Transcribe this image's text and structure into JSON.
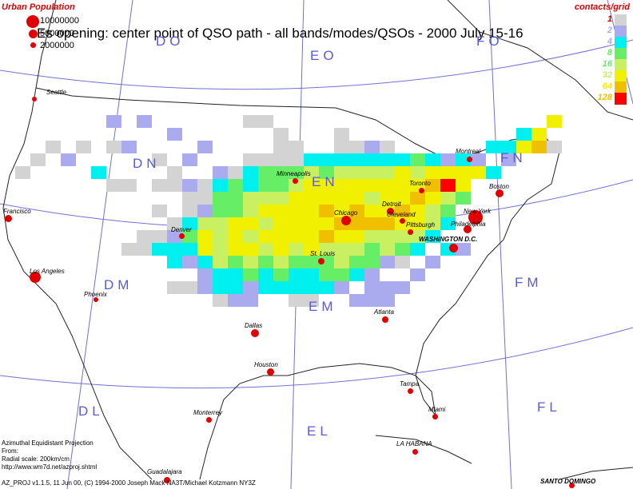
{
  "title": "Es opening: center point of QSO path - all bands/modes/QSOs - 2000 July 15-16",
  "urban_population": {
    "header": "Urban Population",
    "items": [
      {
        "label": "10000000"
      },
      {
        "label": "5000000"
      },
      {
        "label": "2000000"
      }
    ]
  },
  "contacts_legend": {
    "header": "contacts/grid",
    "items": [
      {
        "label": "1",
        "color": "#d3d3d3",
        "text_color": "#c00000"
      },
      {
        "label": "2",
        "color": "#aaaaee",
        "text_color": "#aaaaee"
      },
      {
        "label": "4",
        "color": "#00f0f0",
        "text_color": "#aaaaee"
      },
      {
        "label": "8",
        "color": "#66ee66",
        "text_color": "#66ee66"
      },
      {
        "label": "16",
        "color": "#c8f060",
        "text_color": "#66ee66"
      },
      {
        "label": "32",
        "color": "#f0f000",
        "text_color": "#c8f060"
      },
      {
        "label": "64",
        "color": "#f0c000",
        "text_color": "#f0f000"
      },
      {
        "label": "128",
        "color": "#ff0000",
        "text_color": "#f0c000"
      }
    ]
  },
  "grid_squares": [
    "DO",
    "EO",
    "FO",
    "DN",
    "EN",
    "FN",
    "DM",
    "EM",
    "FM",
    "DL",
    "EL",
    "FL"
  ],
  "cities": [
    "Seattle",
    "Francisco",
    "Los Angeles",
    "Phoenix",
    "Denver",
    "Minneapolis",
    "Chicago",
    "Detroit",
    "Toronto",
    "Montreal",
    "Boston",
    "New York",
    "Philadelphia",
    "Cleveland",
    "Pittsburgh",
    "WASHINGTON D.C.",
    "St. Louis",
    "Atlanta",
    "Dallas",
    "Houston",
    "Tampa",
    "Miami",
    "Monterrey",
    "LA HABANA",
    "Guadalajara",
    "SANTO DOMINGO"
  ],
  "footer": [
    "Azimuthal Equidistant Projection",
    "From:",
    "Radial scale: 200km/cm",
    "http://www.wm7d.net/azproj.shtml",
    "AZ_PROJ v1.1.5, 11 Jun 00, (C) 1994-2000 Joseph Mack NA3T/Michael Kotzmann NY3Z"
  ],
  "heatmap_cells": [
    {
      "c": 7,
      "r": 9,
      "v": 2
    },
    {
      "c": 9,
      "r": 9,
      "v": 2
    },
    {
      "c": 11,
      "r": 10,
      "v": 2
    },
    {
      "c": 3,
      "r": 11,
      "v": 1
    },
    {
      "c": 8,
      "r": 11,
      "v": 2
    },
    {
      "c": 12,
      "r": 12,
      "v": 2
    },
    {
      "c": 13,
      "r": 11,
      "v": 3
    },
    {
      "c": 2,
      "r": 12,
      "v": 1
    },
    {
      "c": 4,
      "r": 12,
      "v": 2
    },
    {
      "c": 5,
      "r": 11,
      "v": 1
    },
    {
      "c": 7,
      "r": 11,
      "v": 1
    },
    {
      "c": 1,
      "r": 13,
      "v": 1
    },
    {
      "c": 6,
      "r": 13,
      "v": 4
    },
    {
      "c": 10,
      "r": 12,
      "v": 1
    },
    {
      "c": 11,
      "r": 13,
      "v": 1
    },
    {
      "c": 14,
      "r": 13,
      "v": 2
    },
    {
      "c": 16,
      "r": 12,
      "v": 1
    },
    {
      "c": 17,
      "r": 12,
      "v": 1
    },
    {
      "c": 18,
      "r": 12,
      "v": 1
    },
    {
      "c": 19,
      "r": 12,
      "v": 1
    },
    {
      "c": 16,
      "r": 9,
      "v": 1
    },
    {
      "c": 17,
      "r": 9,
      "v": 1
    },
    {
      "c": 18,
      "r": 10,
      "v": 1
    },
    {
      "c": 18,
      "r": 11,
      "v": 1
    },
    {
      "c": 22,
      "r": 10,
      "v": 1
    },
    {
      "c": 24,
      "r": 11,
      "v": 2
    },
    {
      "c": 25,
      "r": 11,
      "v": 1
    },
    {
      "c": 19,
      "r": 11,
      "v": 1
    },
    {
      "c": 22,
      "r": 11,
      "v": 1
    },
    {
      "c": 23,
      "r": 11,
      "v": 1
    },
    {
      "c": 20,
      "r": 12,
      "v": 4
    },
    {
      "c": 21,
      "r": 12,
      "v": 4
    },
    {
      "c": 22,
      "r": 12,
      "v": 4
    },
    {
      "c": 23,
      "r": 12,
      "v": 4
    },
    {
      "c": 24,
      "r": 12,
      "v": 4
    },
    {
      "c": 25,
      "r": 12,
      "v": 4
    },
    {
      "c": 26,
      "r": 12,
      "v": 4
    },
    {
      "c": 27,
      "r": 12,
      "v": 8
    },
    {
      "c": 28,
      "r": 12,
      "v": 4
    },
    {
      "c": 29,
      "r": 12,
      "v": 2
    },
    {
      "c": 30,
      "r": 12,
      "v": 4
    },
    {
      "c": 31,
      "r": 12,
      "v": 3
    },
    {
      "c": 32,
      "r": 11,
      "v": 4
    },
    {
      "c": 33,
      "r": 11,
      "v": 4
    },
    {
      "c": 34,
      "r": 10,
      "v": 4
    },
    {
      "c": 35,
      "r": 10,
      "v": 32
    },
    {
      "c": 36,
      "r": 9,
      "v": 32
    },
    {
      "c": 34,
      "r": 11,
      "v": 32
    },
    {
      "c": 35,
      "r": 11,
      "v": 64
    },
    {
      "c": 36,
      "r": 11,
      "v": 1
    },
    {
      "c": 15,
      "r": 13,
      "v": 1
    },
    {
      "c": 16,
      "r": 13,
      "v": 4
    },
    {
      "c": 17,
      "r": 13,
      "v": 8
    },
    {
      "c": 18,
      "r": 13,
      "v": 8
    },
    {
      "c": 19,
      "r": 13,
      "v": 8
    },
    {
      "c": 20,
      "r": 13,
      "v": 16
    },
    {
      "c": 21,
      "r": 13,
      "v": 8
    },
    {
      "c": 22,
      "r": 13,
      "v": 16
    },
    {
      "c": 23,
      "r": 13,
      "v": 16
    },
    {
      "c": 24,
      "r": 13,
      "v": 16
    },
    {
      "c": 25,
      "r": 13,
      "v": 16
    },
    {
      "c": 26,
      "r": 13,
      "v": 32
    },
    {
      "c": 27,
      "r": 13,
      "v": 16
    },
    {
      "c": 28,
      "r": 13,
      "v": 32
    },
    {
      "c": 29,
      "r": 13,
      "v": 32
    },
    {
      "c": 30,
      "r": 13,
      "v": 32
    },
    {
      "c": 31,
      "r": 13,
      "v": 32
    },
    {
      "c": 32,
      "r": 13,
      "v": 4
    },
    {
      "c": 33,
      "r": 12,
      "v": 2
    },
    {
      "c": 11,
      "r": 14,
      "v": 1
    },
    {
      "c": 12,
      "r": 14,
      "v": 2
    },
    {
      "c": 13,
      "r": 14,
      "v": 1
    },
    {
      "c": 14,
      "r": 14,
      "v": 4
    },
    {
      "c": 15,
      "r": 14,
      "v": 8
    },
    {
      "c": 16,
      "r": 14,
      "v": 4
    },
    {
      "c": 17,
      "r": 14,
      "v": 8
    },
    {
      "c": 18,
      "r": 14,
      "v": 8
    },
    {
      "c": 19,
      "r": 14,
      "v": 16
    },
    {
      "c": 20,
      "r": 14,
      "v": 32
    },
    {
      "c": 21,
      "r": 14,
      "v": 32
    },
    {
      "c": 22,
      "r": 14,
      "v": 32
    },
    {
      "c": 23,
      "r": 14,
      "v": 32
    },
    {
      "c": 24,
      "r": 14,
      "v": 32
    },
    {
      "c": 25,
      "r": 14,
      "v": 32
    },
    {
      "c": 26,
      "r": 14,
      "v": 32
    },
    {
      "c": 27,
      "r": 14,
      "v": 32
    },
    {
      "c": 28,
      "r": 14,
      "v": 64
    },
    {
      "c": 29,
      "r": 14,
      "v": 128
    },
    {
      "c": 30,
      "r": 14,
      "v": 32
    },
    {
      "c": 7,
      "r": 14,
      "v": 1
    },
    {
      "c": 8,
      "r": 14,
      "v": 1
    },
    {
      "c": 10,
      "r": 14,
      "v": 1
    },
    {
      "c": 12,
      "r": 15,
      "v": 1
    },
    {
      "c": 13,
      "r": 15,
      "v": 1
    },
    {
      "c": 14,
      "r": 15,
      "v": 8
    },
    {
      "c": 15,
      "r": 15,
      "v": 8
    },
    {
      "c": 16,
      "r": 15,
      "v": 16
    },
    {
      "c": 17,
      "r": 15,
      "v": 16
    },
    {
      "c": 18,
      "r": 15,
      "v": 16
    },
    {
      "c": 19,
      "r": 15,
      "v": 32
    },
    {
      "c": 20,
      "r": 15,
      "v": 32
    },
    {
      "c": 21,
      "r": 15,
      "v": 32
    },
    {
      "c": 22,
      "r": 15,
      "v": 32
    },
    {
      "c": 23,
      "r": 15,
      "v": 32
    },
    {
      "c": 24,
      "r": 15,
      "v": 16
    },
    {
      "c": 25,
      "r": 15,
      "v": 32
    },
    {
      "c": 26,
      "r": 15,
      "v": 32
    },
    {
      "c": 27,
      "r": 15,
      "v": 64
    },
    {
      "c": 28,
      "r": 15,
      "v": 32
    },
    {
      "c": 29,
      "r": 15,
      "v": 16
    },
    {
      "c": 30,
      "r": 15,
      "v": 8
    },
    {
      "c": 12,
      "r": 16,
      "v": 1
    },
    {
      "c": 13,
      "r": 16,
      "v": 2
    },
    {
      "c": 14,
      "r": 16,
      "v": 8
    },
    {
      "c": 15,
      "r": 16,
      "v": 8
    },
    {
      "c": 16,
      "r": 16,
      "v": 16
    },
    {
      "c": 17,
      "r": 16,
      "v": 32
    },
    {
      "c": 18,
      "r": 16,
      "v": 32
    },
    {
      "c": 19,
      "r": 16,
      "v": 32
    },
    {
      "c": 20,
      "r": 16,
      "v": 32
    },
    {
      "c": 21,
      "r": 16,
      "v": 64
    },
    {
      "c": 22,
      "r": 16,
      "v": 32
    },
    {
      "c": 23,
      "r": 16,
      "v": 64
    },
    {
      "c": 24,
      "r": 16,
      "v": 32
    },
    {
      "c": 25,
      "r": 16,
      "v": 32
    },
    {
      "c": 26,
      "r": 16,
      "v": 64
    },
    {
      "c": 27,
      "r": 16,
      "v": 32
    },
    {
      "c": 28,
      "r": 16,
      "v": 16
    },
    {
      "c": 29,
      "r": 16,
      "v": 8
    },
    {
      "c": 10,
      "r": 16,
      "v": 1
    },
    {
      "c": 11,
      "r": 17,
      "v": 1
    },
    {
      "c": 12,
      "r": 17,
      "v": 4
    },
    {
      "c": 13,
      "r": 17,
      "v": 16
    },
    {
      "c": 14,
      "r": 17,
      "v": 16
    },
    {
      "c": 15,
      "r": 17,
      "v": 32
    },
    {
      "c": 16,
      "r": 17,
      "v": 32
    },
    {
      "c": 17,
      "r": 17,
      "v": 16
    },
    {
      "c": 18,
      "r": 17,
      "v": 32
    },
    {
      "c": 19,
      "r": 17,
      "v": 32
    },
    {
      "c": 20,
      "r": 17,
      "v": 32
    },
    {
      "c": 21,
      "r": 17,
      "v": 32
    },
    {
      "c": 22,
      "r": 17,
      "v": 64
    },
    {
      "c": 23,
      "r": 17,
      "v": 64
    },
    {
      "c": 24,
      "r": 17,
      "v": 64
    },
    {
      "c": 25,
      "r": 17,
      "v": 64
    },
    {
      "c": 26,
      "r": 17,
      "v": 32
    },
    {
      "c": 27,
      "r": 17,
      "v": 32
    },
    {
      "c": 28,
      "r": 17,
      "v": 16
    },
    {
      "c": 29,
      "r": 17,
      "v": 4
    },
    {
      "c": 9,
      "r": 18,
      "v": 1
    },
    {
      "c": 10,
      "r": 18,
      "v": 1
    },
    {
      "c": 11,
      "r": 18,
      "v": 2
    },
    {
      "c": 12,
      "r": 18,
      "v": 8
    },
    {
      "c": 13,
      "r": 18,
      "v": 32
    },
    {
      "c": 14,
      "r": 18,
      "v": 16
    },
    {
      "c": 15,
      "r": 18,
      "v": 32
    },
    {
      "c": 16,
      "r": 18,
      "v": 16
    },
    {
      "c": 17,
      "r": 18,
      "v": 32
    },
    {
      "c": 18,
      "r": 18,
      "v": 32
    },
    {
      "c": 19,
      "r": 18,
      "v": 32
    },
    {
      "c": 20,
      "r": 18,
      "v": 32
    },
    {
      "c": 21,
      "r": 18,
      "v": 64
    },
    {
      "c": 22,
      "r": 18,
      "v": 32
    },
    {
      "c": 23,
      "r": 18,
      "v": 32
    },
    {
      "c": 24,
      "r": 18,
      "v": 16
    },
    {
      "c": 25,
      "r": 18,
      "v": 16
    },
    {
      "c": 26,
      "r": 18,
      "v": 16
    },
    {
      "c": 27,
      "r": 18,
      "v": 16
    },
    {
      "c": 28,
      "r": 18,
      "v": 4
    },
    {
      "c": 8,
      "r": 19,
      "v": 1
    },
    {
      "c": 9,
      "r": 19,
      "v": 1
    },
    {
      "c": 10,
      "r": 19,
      "v": 4
    },
    {
      "c": 11,
      "r": 19,
      "v": 4
    },
    {
      "c": 12,
      "r": 19,
      "v": 4
    },
    {
      "c": 13,
      "r": 19,
      "v": 32
    },
    {
      "c": 14,
      "r": 19,
      "v": 16
    },
    {
      "c": 15,
      "r": 19,
      "v": 32
    },
    {
      "c": 16,
      "r": 19,
      "v": 32
    },
    {
      "c": 17,
      "r": 19,
      "v": 16
    },
    {
      "c": 18,
      "r": 19,
      "v": 32
    },
    {
      "c": 19,
      "r": 19,
      "v": 16
    },
    {
      "c": 20,
      "r": 19,
      "v": 32
    },
    {
      "c": 21,
      "r": 19,
      "v": 16
    },
    {
      "c": 22,
      "r": 19,
      "v": 16
    },
    {
      "c": 23,
      "r": 19,
      "v": 16
    },
    {
      "c": 24,
      "r": 19,
      "v": 8
    },
    {
      "c": 25,
      "r": 19,
      "v": 16
    },
    {
      "c": 26,
      "r": 19,
      "v": 8
    },
    {
      "c": 27,
      "r": 19,
      "v": 4
    },
    {
      "c": 11,
      "r": 20,
      "v": 4
    },
    {
      "c": 12,
      "r": 20,
      "v": 2
    },
    {
      "c": 13,
      "r": 20,
      "v": 4
    },
    {
      "c": 14,
      "r": 20,
      "v": 16
    },
    {
      "c": 15,
      "r": 20,
      "v": 8
    },
    {
      "c": 16,
      "r": 20,
      "v": 16
    },
    {
      "c": 17,
      "r": 20,
      "v": 8
    },
    {
      "c": 18,
      "r": 20,
      "v": 16
    },
    {
      "c": 19,
      "r": 20,
      "v": 8
    },
    {
      "c": 20,
      "r": 20,
      "v": 8
    },
    {
      "c": 21,
      "r": 20,
      "v": 8
    },
    {
      "c": 22,
      "r": 20,
      "v": 16
    },
    {
      "c": 23,
      "r": 20,
      "v": 8
    },
    {
      "c": 24,
      "r": 20,
      "v": 8
    },
    {
      "c": 25,
      "r": 20,
      "v": 2
    },
    {
      "c": 26,
      "r": 20,
      "v": 1
    },
    {
      "c": 13,
      "r": 21,
      "v": 2
    },
    {
      "c": 14,
      "r": 21,
      "v": 4
    },
    {
      "c": 15,
      "r": 21,
      "v": 4
    },
    {
      "c": 16,
      "r": 21,
      "v": 8
    },
    {
      "c": 17,
      "r": 21,
      "v": 4
    },
    {
      "c": 18,
      "r": 21,
      "v": 8
    },
    {
      "c": 19,
      "r": 21,
      "v": 4
    },
    {
      "c": 20,
      "r": 21,
      "v": 4
    },
    {
      "c": 21,
      "r": 21,
      "v": 8
    },
    {
      "c": 22,
      "r": 21,
      "v": 8
    },
    {
      "c": 23,
      "r": 21,
      "v": 4
    },
    {
      "c": 24,
      "r": 21,
      "v": 2
    },
    {
      "c": 11,
      "r": 22,
      "v": 1
    },
    {
      "c": 12,
      "r": 22,
      "v": 1
    },
    {
      "c": 13,
      "r": 22,
      "v": 2
    },
    {
      "c": 14,
      "r": 22,
      "v": 4
    },
    {
      "c": 15,
      "r": 22,
      "v": 4
    },
    {
      "c": 16,
      "r": 22,
      "v": 2
    },
    {
      "c": 17,
      "r": 22,
      "v": 4
    },
    {
      "c": 18,
      "r": 22,
      "v": 4
    },
    {
      "c": 19,
      "r": 22,
      "v": 4
    },
    {
      "c": 20,
      "r": 22,
      "v": 4
    },
    {
      "c": 21,
      "r": 22,
      "v": 4
    },
    {
      "c": 22,
      "r": 22,
      "v": 2
    },
    {
      "c": 14,
      "r": 23,
      "v": 1
    },
    {
      "c": 15,
      "r": 23,
      "v": 2
    },
    {
      "c": 16,
      "r": 23,
      "v": 2
    },
    {
      "c": 19,
      "r": 23,
      "v": 1
    },
    {
      "c": 20,
      "r": 23,
      "v": 1
    },
    {
      "c": 23,
      "r": 23,
      "v": 2
    },
    {
      "c": 24,
      "r": 23,
      "v": 2
    },
    {
      "c": 25,
      "r": 23,
      "v": 2
    },
    {
      "c": 29,
      "r": 19,
      "v": 4
    },
    {
      "c": 30,
      "r": 19,
      "v": 2
    },
    {
      "c": 28,
      "r": 20,
      "v": 2
    },
    {
      "c": 27,
      "r": 21,
      "v": 2
    },
    {
      "c": 24,
      "r": 22,
      "v": 2
    },
    {
      "c": 25,
      "r": 22,
      "v": 2
    },
    {
      "c": 26,
      "r": 22,
      "v": 2
    }
  ]
}
